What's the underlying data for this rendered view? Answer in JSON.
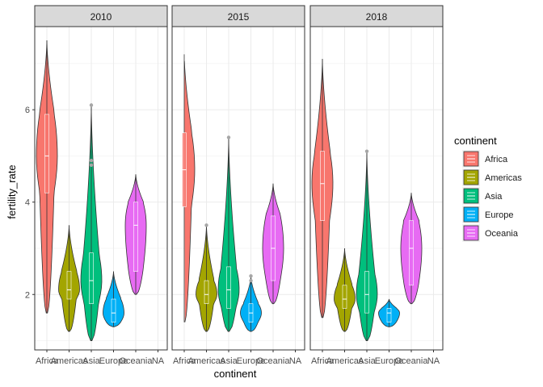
{
  "chart_data": {
    "type": "violin",
    "facet_var": "year",
    "facets": [
      "2010",
      "2015",
      "2018"
    ],
    "xlabel": "continent",
    "ylabel": "fertility_rate",
    "categories": [
      "Africa",
      "Americas",
      "Asia",
      "Europe",
      "Oceania",
      "NA"
    ],
    "yticks": [
      2,
      4,
      6
    ],
    "ylim": [
      0.8,
      7.8
    ],
    "grid": true,
    "legend": {
      "title": "continent",
      "position": "right",
      "entries": [
        "Africa",
        "Americas",
        "Asia",
        "Europe",
        "Oceania"
      ]
    },
    "colors": {
      "Africa": "#F8766D",
      "Americas": "#A3A500",
      "Asia": "#00BF7D",
      "Europe": "#00B0F6",
      "Oceania": "#E76BF3"
    },
    "groups": [
      {
        "year": "2010",
        "continent": "Africa",
        "min": 1.6,
        "max": 7.5,
        "q1": 4.2,
        "median": 5.0,
        "q3": 5.9,
        "outliers": []
      },
      {
        "year": "2010",
        "continent": "Americas",
        "min": 1.2,
        "max": 3.5,
        "q1": 1.9,
        "median": 2.1,
        "q3": 2.5,
        "outliers": []
      },
      {
        "year": "2010",
        "continent": "Asia",
        "min": 1.0,
        "max": 6.1,
        "q1": 1.8,
        "median": 2.3,
        "q3": 2.9,
        "outliers": [
          6.1,
          4.9,
          4.8
        ]
      },
      {
        "year": "2010",
        "continent": "Europe",
        "min": 1.3,
        "max": 2.5,
        "q1": 1.4,
        "median": 1.6,
        "q3": 1.9,
        "outliers": []
      },
      {
        "year": "2010",
        "continent": "Oceania",
        "min": 2.0,
        "max": 4.6,
        "q1": 2.5,
        "median": 3.5,
        "q3": 4.0,
        "outliers": []
      },
      {
        "year": "2015",
        "continent": "Africa",
        "min": 1.4,
        "max": 7.2,
        "q1": 3.9,
        "median": 4.7,
        "q3": 5.5,
        "outliers": []
      },
      {
        "year": "2015",
        "continent": "Americas",
        "min": 1.2,
        "max": 3.5,
        "q1": 1.8,
        "median": 2.0,
        "q3": 2.3,
        "outliers": [
          3.5
        ]
      },
      {
        "year": "2015",
        "continent": "Asia",
        "min": 1.2,
        "max": 5.4,
        "q1": 1.7,
        "median": 2.1,
        "q3": 2.6,
        "outliers": [
          5.4
        ]
      },
      {
        "year": "2015",
        "continent": "Europe",
        "min": 1.2,
        "max": 2.4,
        "q1": 1.4,
        "median": 1.6,
        "q3": 1.8,
        "outliers": [
          2.4,
          2.3
        ]
      },
      {
        "year": "2015",
        "continent": "Oceania",
        "min": 1.8,
        "max": 4.4,
        "q1": 2.3,
        "median": 3.0,
        "q3": 3.7,
        "outliers": []
      },
      {
        "year": "2018",
        "continent": "Africa",
        "min": 1.5,
        "max": 7.1,
        "q1": 3.6,
        "median": 4.4,
        "q3": 5.1,
        "outliers": []
      },
      {
        "year": "2018",
        "continent": "Americas",
        "min": 1.2,
        "max": 3.0,
        "q1": 1.7,
        "median": 1.9,
        "q3": 2.2,
        "outliers": []
      },
      {
        "year": "2018",
        "continent": "Asia",
        "min": 1.0,
        "max": 5.1,
        "q1": 1.6,
        "median": 2.0,
        "q3": 2.5,
        "outliers": [
          5.1
        ]
      },
      {
        "year": "2018",
        "continent": "Europe",
        "min": 1.3,
        "max": 1.9,
        "q1": 1.4,
        "median": 1.6,
        "q3": 1.7,
        "outliers": []
      },
      {
        "year": "2018",
        "continent": "Oceania",
        "min": 1.8,
        "max": 4.2,
        "q1": 2.2,
        "median": 3.0,
        "q3": 3.6,
        "outliers": []
      }
    ]
  }
}
